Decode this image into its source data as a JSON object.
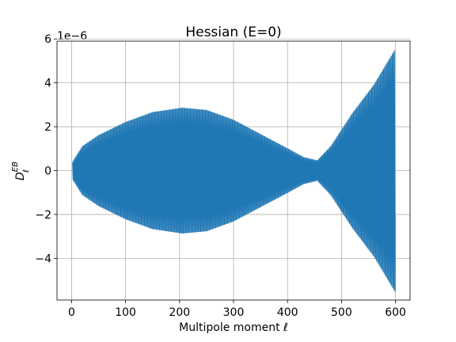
{
  "chart_data": {
    "type": "line",
    "title": "Hessian (E=0)",
    "xlabel": "Multipole moment ℓ",
    "ylabel_main": "D",
    "ylabel_sub": "ℓ",
    "ylabel_sup": "EB",
    "y_offset_label": "1e−6",
    "xlim": [
      -27,
      627
    ],
    "ylim": [
      -5.9,
      5.9
    ],
    "x_ticks": [
      0,
      100,
      200,
      300,
      400,
      500,
      600
    ],
    "x_tick_labels": [
      "0",
      "100",
      "200",
      "300",
      "400",
      "500",
      "600"
    ],
    "y_ticks": [
      -4,
      -2,
      0,
      2,
      4,
      6
    ],
    "y_tick_labels": [
      "−4",
      "−2",
      "0",
      "2",
      "4",
      "6"
    ],
    "grid": true,
    "series_color": "#1f77b4",
    "series": [
      {
        "x_start": 2,
        "x_end": 599,
        "x_step": 1,
        "envelope_x": [
          2,
          20,
          50,
          100,
          150,
          205,
          250,
          300,
          350,
          400,
          430,
          455,
          480,
          520,
          560,
          599
        ],
        "envelope_y": [
          0.4,
          1.1,
          1.6,
          2.2,
          2.65,
          2.85,
          2.75,
          2.3,
          1.65,
          1.0,
          0.6,
          0.45,
          1.1,
          2.6,
          3.9,
          5.5
        ]
      }
    ]
  }
}
